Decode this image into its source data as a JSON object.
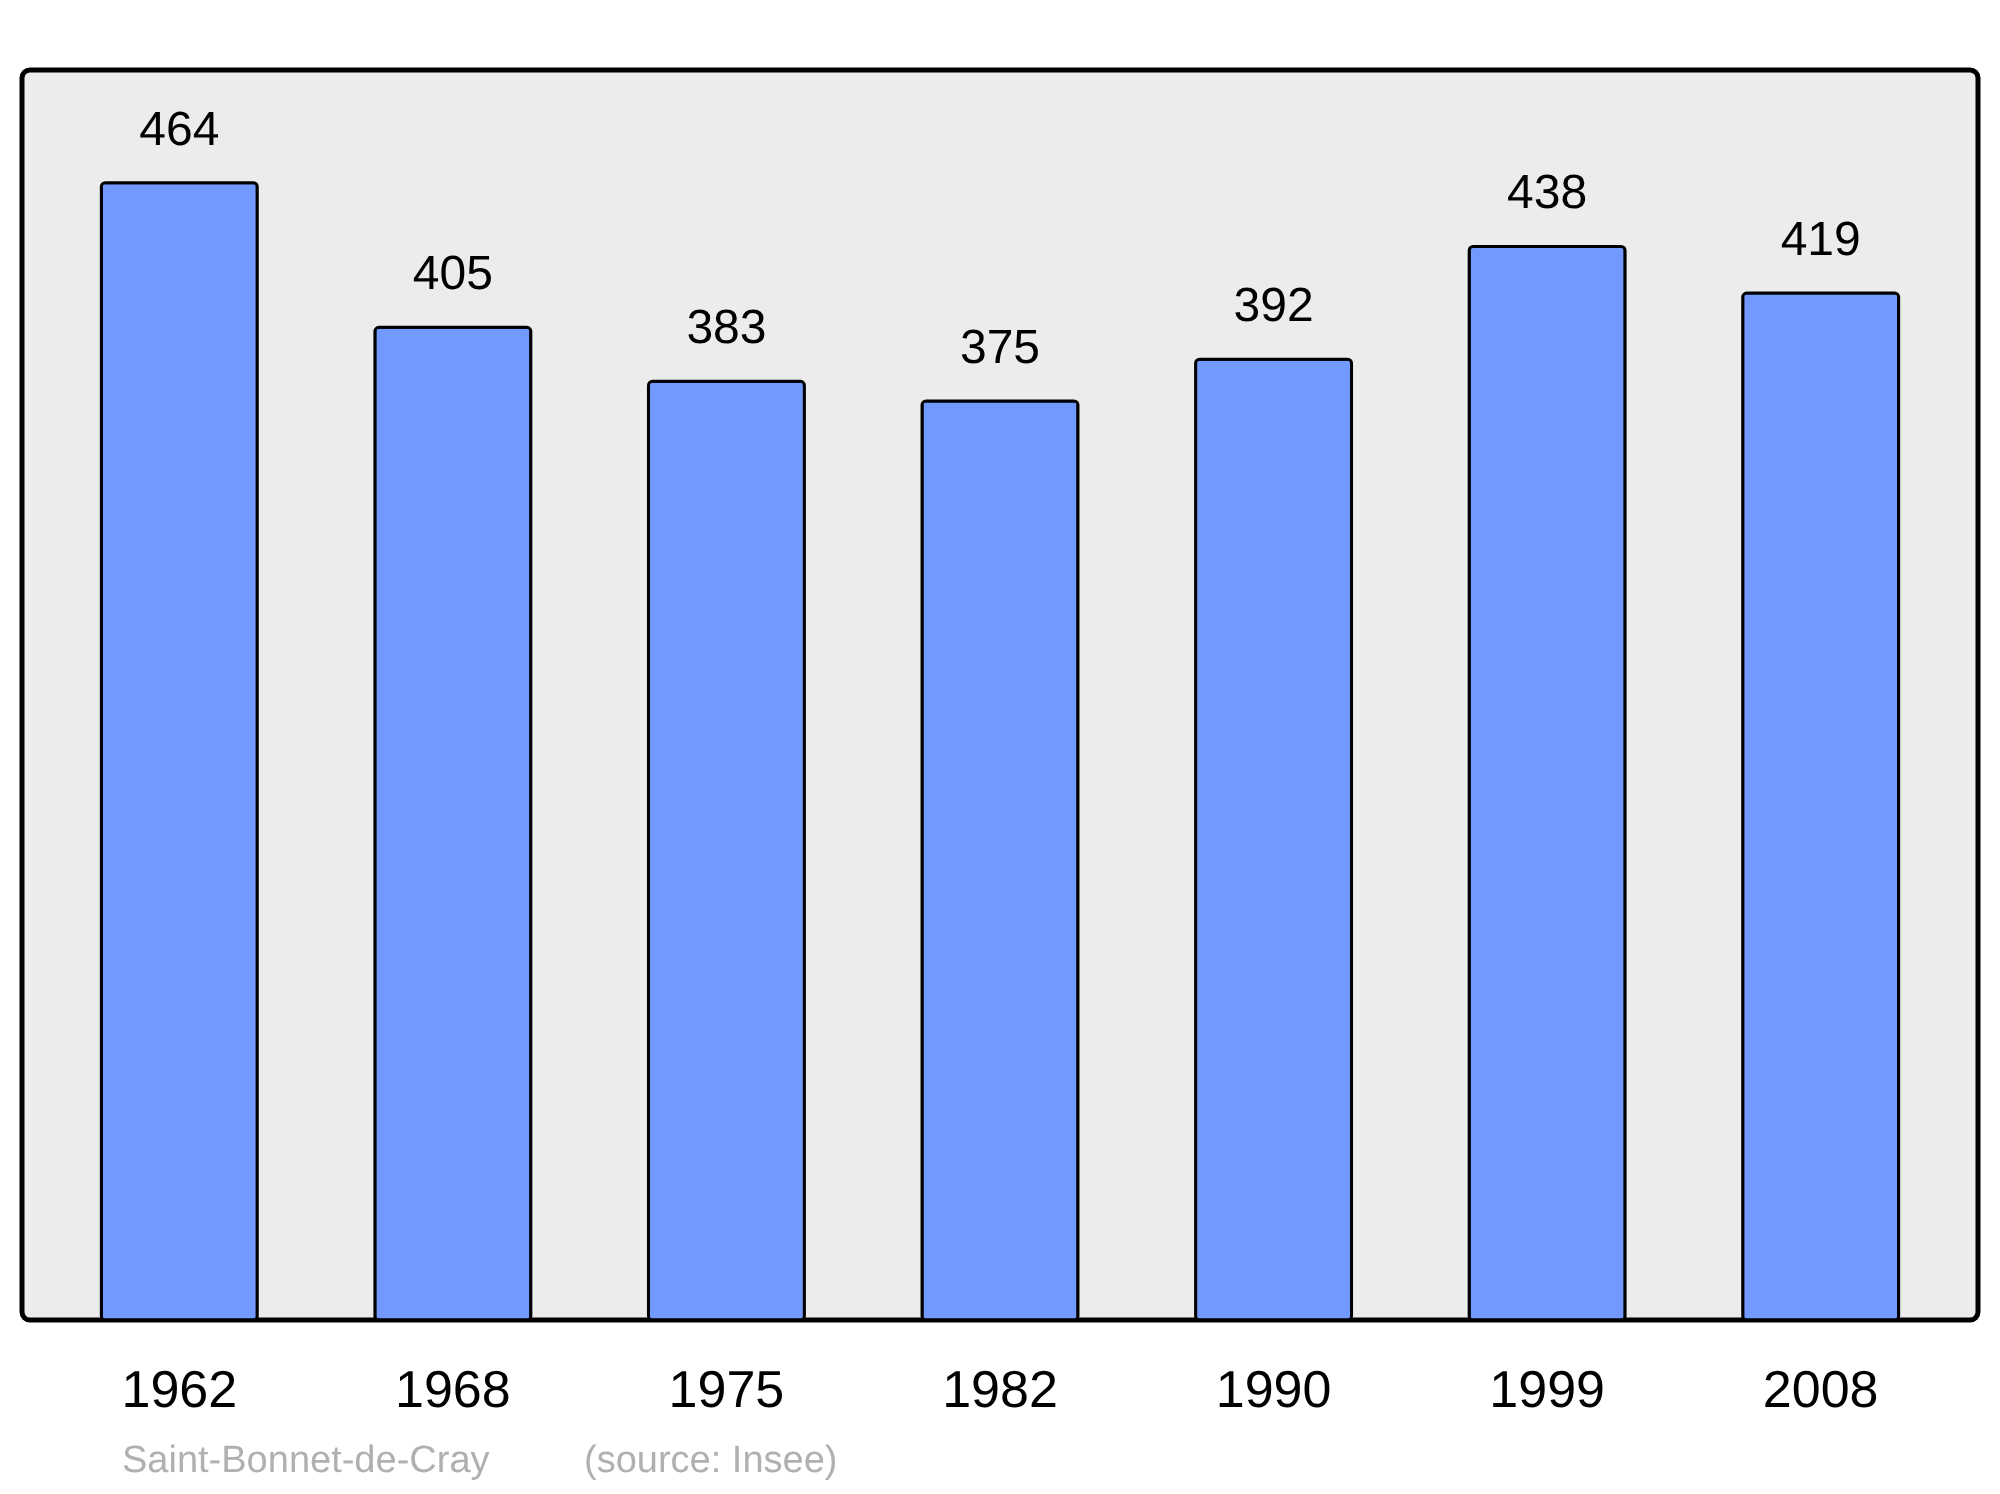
{
  "chart_data": {
    "type": "bar",
    "categories": [
      "1962",
      "1968",
      "1975",
      "1982",
      "1990",
      "1999",
      "2008"
    ],
    "values": [
      464,
      405,
      383,
      375,
      392,
      438,
      419
    ],
    "color": "#7299ff",
    "ylim": [
      0,
      510
    ],
    "data_labels": true,
    "grid": false,
    "tick_labels": "x",
    "annotations": [
      "Saint-Bonnet-de-Cray",
      "(source: Insee)"
    ]
  }
}
